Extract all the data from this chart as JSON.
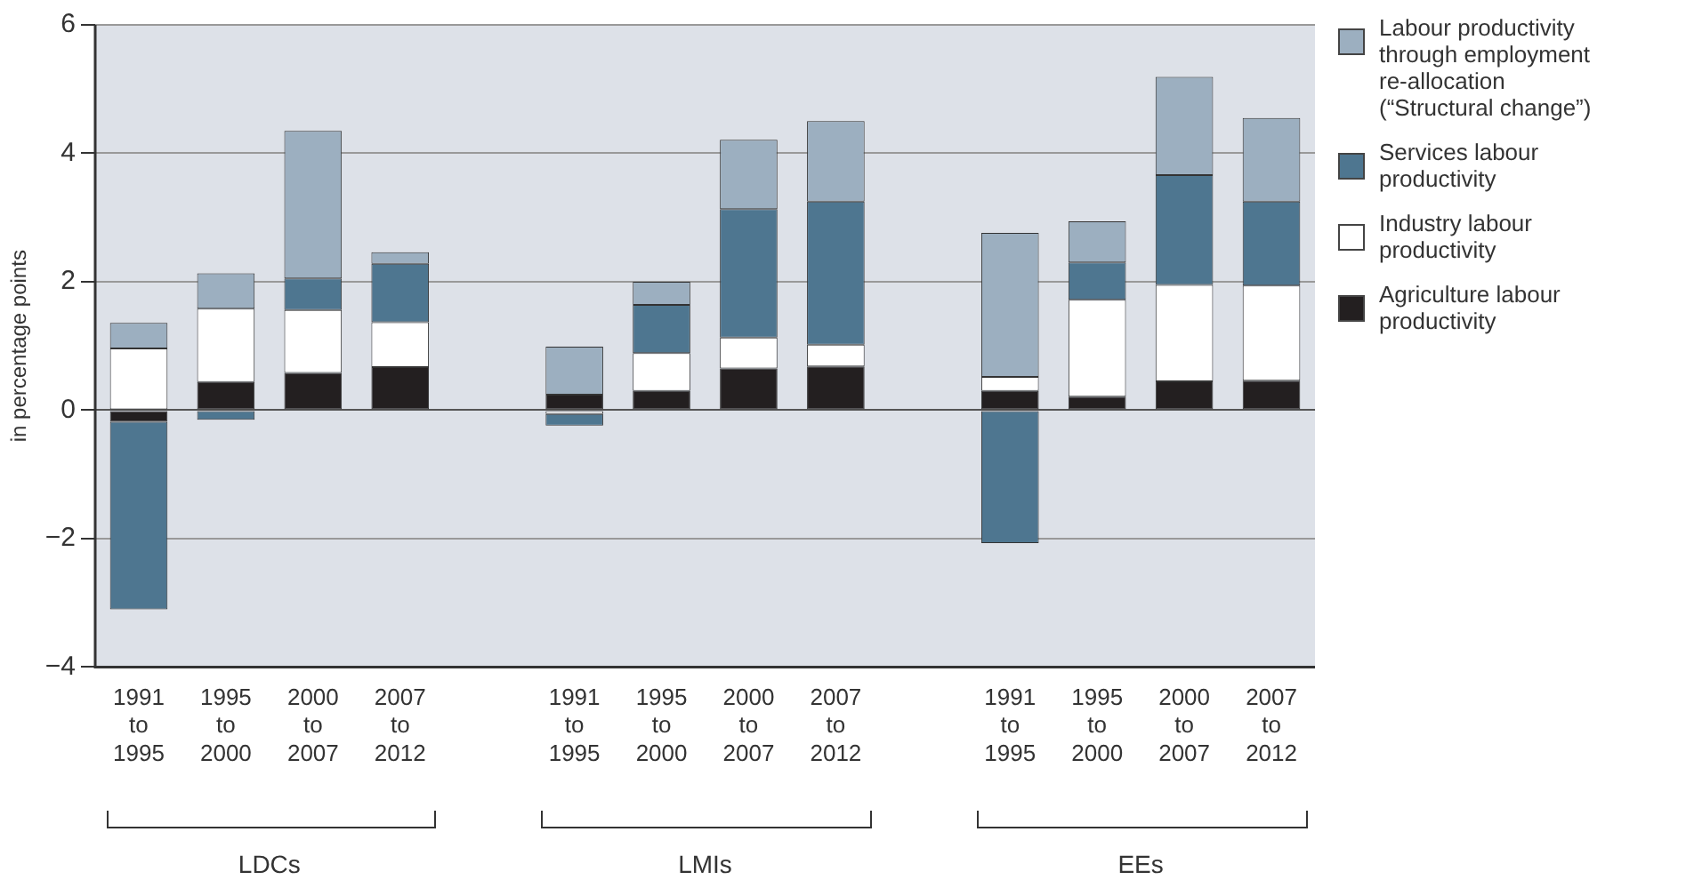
{
  "chart_data": {
    "type": "bar",
    "stacked": true,
    "ylabel": "in percentage points",
    "categories": [
      "1991 to 1995",
      "1995 to 2000",
      "2000 to 2007",
      "2007 to 2012",
      null,
      "1991 to 1995",
      "1995 to 2000",
      "2000 to 2007",
      "2007 to 2012",
      null,
      "1991 to 1995",
      "1995 to 2000",
      "2000 to 2007",
      "2007 to 2012"
    ],
    "series": [
      {
        "name": "Agriculture labour productivity",
        "color": "#231f20",
        "values": [
          -0.18,
          0.44,
          0.58,
          0.67,
          null,
          0.24,
          0.3,
          0.65,
          0.68,
          null,
          0.3,
          0.21,
          0.45,
          0.46
        ]
      },
      {
        "name": "Industry labour productivity",
        "color": "#ffffff",
        "values": [
          0.96,
          1.14,
          0.98,
          0.7,
          null,
          -0.06,
          0.59,
          0.48,
          0.34,
          null,
          0.22,
          1.51,
          1.5,
          1.48
        ]
      },
      {
        "name": "Services labour productivity",
        "color": "#4e7690",
        "values": [
          -2.92,
          -0.15,
          0.49,
          0.91,
          null,
          -0.18,
          0.75,
          2.0,
          2.23,
          null,
          -2.07,
          0.58,
          1.71,
          1.31
        ]
      },
      {
        "name": "Labour productivity through employment re-allocation (“Structural change”)",
        "color": "#9cafc0",
        "values": [
          0.4,
          0.55,
          2.3,
          0.18,
          null,
          0.75,
          0.36,
          1.08,
          1.25,
          null,
          2.24,
          0.64,
          1.53,
          1.3
        ]
      }
    ],
    "ylim": [
      -4,
      6
    ],
    "yticks": [
      {
        "value": -4,
        "label": "−4"
      },
      {
        "value": -2,
        "label": "−2"
      },
      0,
      2,
      4,
      6
    ],
    "grid": "y",
    "legend": "right",
    "annotations": [
      "LDCs",
      "LMIs",
      "EEs"
    ]
  }
}
